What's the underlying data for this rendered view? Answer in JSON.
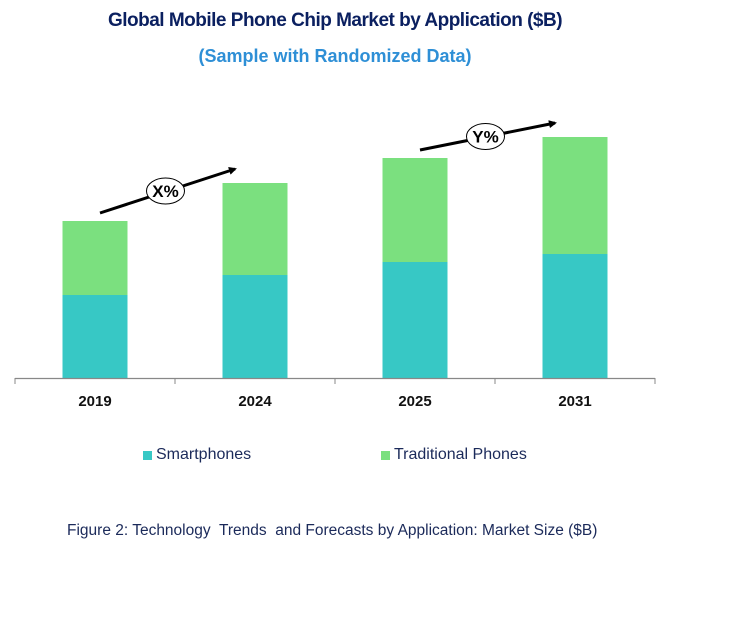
{
  "chart_data": {
    "type": "bar",
    "stacked": true,
    "title": "Global Mobile Phone Chip Market by Application ($B)",
    "subtitle": "(Sample with Randomized Data)",
    "categories": [
      "2019",
      "2024",
      "2025",
      "2031"
    ],
    "series": [
      {
        "name": "Smartphones",
        "color": "#37c8c5",
        "values": [
          8.3,
          10.3,
          11.6,
          12.4
        ]
      },
      {
        "name": "Traditional Phones",
        "color": "#7be07f",
        "values": [
          7.4,
          9.2,
          10.4,
          11.7
        ]
      }
    ],
    "xlabel": "",
    "ylabel": "",
    "ylim": [
      0,
      24
    ],
    "grid": false,
    "legend_position": "bottom",
    "annotations": [
      {
        "label": "X%",
        "from": "2019",
        "to": "2024"
      },
      {
        "label": "Y%",
        "from": "2025",
        "to": "2031"
      }
    ]
  },
  "caption": "Figure 2: Technology  Trends  and Forecasts by Application: Market Size ($B)"
}
